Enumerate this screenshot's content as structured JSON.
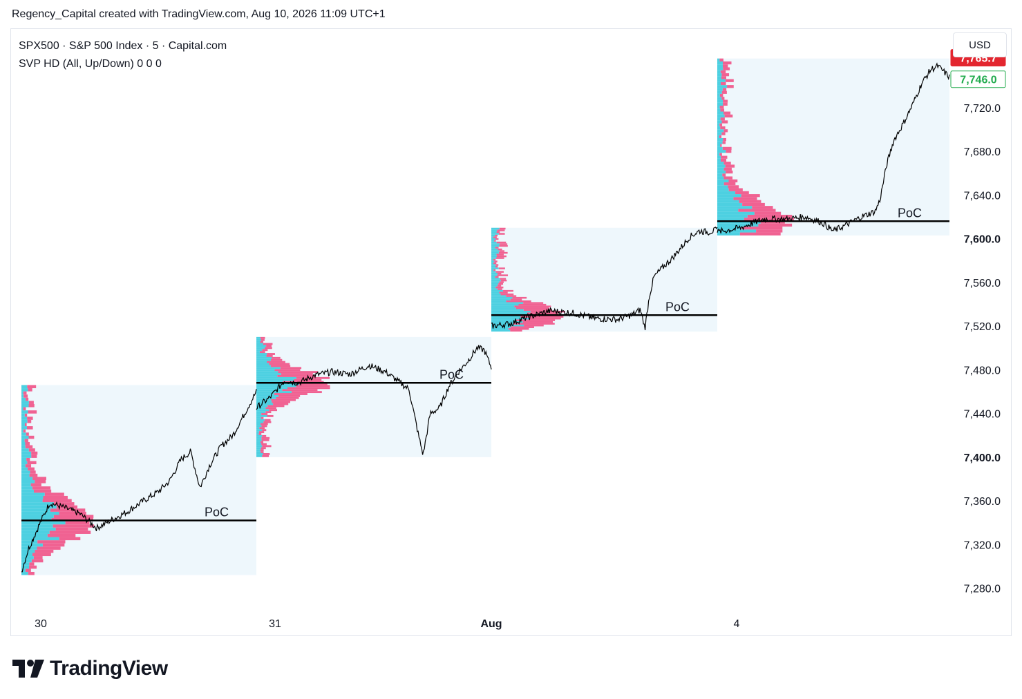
{
  "caption": "Regency_Capital created with TradingView.com, Aug 10, 2026 11:09 UTC+1",
  "legend": {
    "symbol_line": "SPX500 · S&P 500 Index · 5 · Capital.com",
    "indicator_line": "SVP HD (All, Up/Down)  0  0  0"
  },
  "currency_button": "USD",
  "brand": {
    "name": "TradingView",
    "icon": "tradingview-logo-icon"
  },
  "colors": {
    "price_line": "#000000",
    "up_volume": "#4dd0e1",
    "down_volume": "#f06292",
    "session_bg": "#eef7fc",
    "last_price_badge": "#e3262f",
    "prev_close_badge": "#22ab4e"
  },
  "chart_data": {
    "type": "line",
    "y_axis": {
      "range": [
        7262,
        7792
      ],
      "ticks": [
        {
          "value": 7280,
          "label": "7,280.0",
          "major": false
        },
        {
          "value": 7320,
          "label": "7,320.0",
          "major": false
        },
        {
          "value": 7360,
          "label": "7,360.0",
          "major": false
        },
        {
          "value": 7400,
          "label": "7,400.0",
          "major": true
        },
        {
          "value": 7440,
          "label": "7,440.0",
          "major": false
        },
        {
          "value": 7480,
          "label": "7,480.0",
          "major": false
        },
        {
          "value": 7520,
          "label": "7,520.0",
          "major": false
        },
        {
          "value": 7560,
          "label": "7,560.0",
          "major": false
        },
        {
          "value": 7600,
          "label": "7,600.0",
          "major": true
        },
        {
          "value": 7640,
          "label": "7,640.0",
          "major": false
        },
        {
          "value": 7680,
          "label": "7,680.0",
          "major": false
        },
        {
          "value": 7720,
          "label": "7,720.0",
          "major": false
        }
      ]
    },
    "x_axis": {
      "labels": [
        {
          "label": "30",
          "major": false
        },
        {
          "label": "31",
          "major": false
        },
        {
          "label": "Aug",
          "major": true
        },
        {
          "label": "4",
          "major": false
        }
      ]
    },
    "price_badges": [
      {
        "value": 7765.7,
        "label": "7,765.7",
        "style": "filled"
      },
      {
        "value": 7746.0,
        "label": "7,746.0",
        "style": "outline"
      }
    ],
    "sessions": [
      {
        "day": "30",
        "high": 7466,
        "low": 7292,
        "poc": 7342,
        "poc_label": "PoC",
        "path": [
          [
            0,
            7295
          ],
          [
            0.03,
            7316
          ],
          [
            0.08,
            7340
          ],
          [
            0.12,
            7358
          ],
          [
            0.18,
            7354
          ],
          [
            0.25,
            7348
          ],
          [
            0.32,
            7335
          ],
          [
            0.38,
            7342
          ],
          [
            0.45,
            7350
          ],
          [
            0.52,
            7360
          ],
          [
            0.58,
            7368
          ],
          [
            0.63,
            7378
          ],
          [
            0.68,
            7398
          ],
          [
            0.72,
            7405
          ],
          [
            0.76,
            7372
          ],
          [
            0.8,
            7392
          ],
          [
            0.85,
            7410
          ],
          [
            0.9,
            7420
          ],
          [
            0.95,
            7440
          ],
          [
            1.0,
            7460
          ]
        ]
      },
      {
        "day": "31",
        "high": 7510,
        "low": 7400,
        "poc": 7468,
        "poc_label": "PoC",
        "path": [
          [
            0,
            7445
          ],
          [
            0.06,
            7455
          ],
          [
            0.12,
            7470
          ],
          [
            0.18,
            7468
          ],
          [
            0.25,
            7475
          ],
          [
            0.32,
            7478
          ],
          [
            0.4,
            7476
          ],
          [
            0.48,
            7484
          ],
          [
            0.55,
            7478
          ],
          [
            0.6,
            7470
          ],
          [
            0.65,
            7462
          ],
          [
            0.69,
            7420
          ],
          [
            0.71,
            7402
          ],
          [
            0.74,
            7440
          ],
          [
            0.78,
            7445
          ],
          [
            0.82,
            7465
          ],
          [
            0.86,
            7478
          ],
          [
            0.9,
            7488
          ],
          [
            0.94,
            7500
          ],
          [
            0.97,
            7498
          ],
          [
            1.0,
            7482
          ]
        ]
      },
      {
        "day": "Aug",
        "high": 7610,
        "low": 7515,
        "poc": 7530,
        "poc_label": "PoC",
        "path": [
          [
            0,
            7520
          ],
          [
            0.08,
            7522
          ],
          [
            0.16,
            7528
          ],
          [
            0.26,
            7534
          ],
          [
            0.36,
            7532
          ],
          [
            0.46,
            7527
          ],
          [
            0.56,
            7526
          ],
          [
            0.62,
            7530
          ],
          [
            0.66,
            7535
          ],
          [
            0.68,
            7518
          ],
          [
            0.7,
            7548
          ],
          [
            0.72,
            7565
          ],
          [
            0.76,
            7574
          ],
          [
            0.8,
            7582
          ],
          [
            0.84,
            7592
          ],
          [
            0.88,
            7602
          ],
          [
            0.92,
            7607
          ],
          [
            0.96,
            7606
          ],
          [
            1.0,
            7608
          ]
        ]
      },
      {
        "day": "4",
        "high": 7765,
        "low": 7603,
        "poc": 7616,
        "poc_label": "PoC",
        "path": [
          [
            0,
            7606
          ],
          [
            0.1,
            7610
          ],
          [
            0.2,
            7618
          ],
          [
            0.3,
            7618
          ],
          [
            0.38,
            7620
          ],
          [
            0.45,
            7615
          ],
          [
            0.5,
            7607
          ],
          [
            0.55,
            7612
          ],
          [
            0.62,
            7620
          ],
          [
            0.68,
            7625
          ],
          [
            0.7,
            7635
          ],
          [
            0.73,
            7668
          ],
          [
            0.76,
            7690
          ],
          [
            0.8,
            7705
          ],
          [
            0.84,
            7722
          ],
          [
            0.88,
            7742
          ],
          [
            0.92,
            7755
          ],
          [
            0.95,
            7758
          ],
          [
            0.98,
            7752
          ],
          [
            1.0,
            7748
          ]
        ]
      }
    ]
  }
}
